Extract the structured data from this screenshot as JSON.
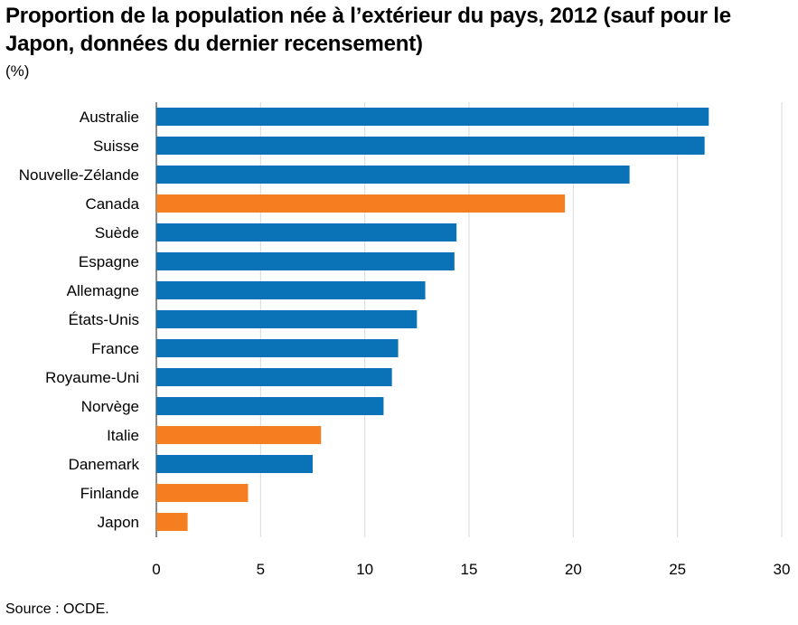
{
  "title": "Proportion de la population née à l’extérieur du pays, 2012 (sauf pour le Japon, données du dernier recensement)",
  "unit_label": "(%)",
  "source": "Source : OCDE.",
  "colors": {
    "primary": "#0a72b6",
    "highlight": "#f57f20",
    "grid": "#d9d9d9",
    "axis": "#8c8c8c"
  },
  "chart_data": {
    "type": "bar",
    "orientation": "horizontal",
    "categories": [
      "Australie",
      "Suisse",
      "Nouvelle-Zélande",
      "Canada",
      "Suède",
      "Espagne",
      "Allemagne",
      "États-Unis",
      "France",
      "Royaume-Uni",
      "Norvège",
      "Italie",
      "Danemark",
      "Finlande",
      "Japon"
    ],
    "values": [
      26.5,
      26.3,
      22.7,
      19.6,
      14.4,
      14.3,
      12.9,
      12.5,
      11.6,
      11.3,
      10.9,
      7.9,
      7.5,
      4.4,
      1.5
    ],
    "highlighted": [
      "Canada",
      "Italie",
      "Finlande",
      "Japon"
    ],
    "xlim": [
      0,
      30
    ],
    "xticks": [
      "0",
      "5",
      "10",
      "15",
      "20",
      "25",
      "30"
    ],
    "grid": true
  }
}
